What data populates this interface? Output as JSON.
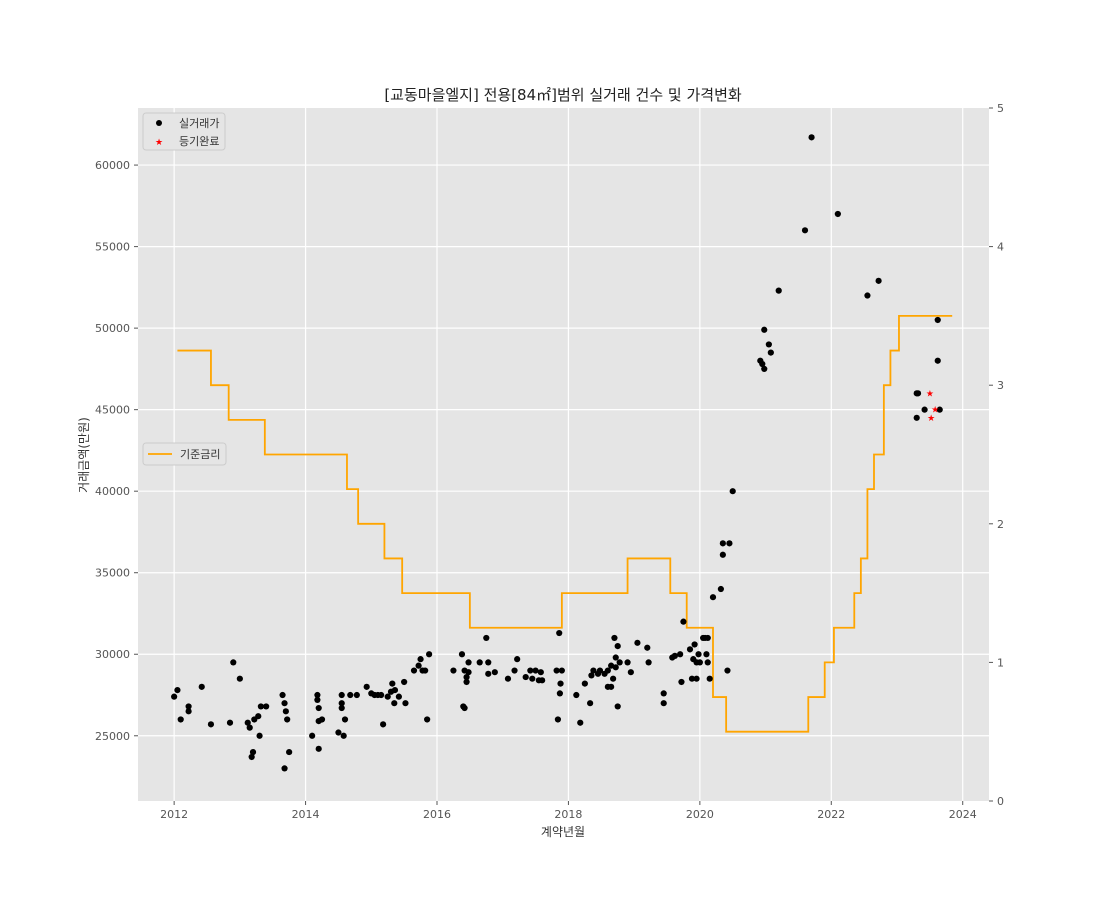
{
  "chart_data": {
    "type": "scatter",
    "title": "[교동마을엘지] 전용[84㎡]범위 실거래 건수 및 가격변화",
    "xlabel": "계약년월",
    "ylabel": "거래금액(만원)",
    "xlim": [
      2011.45,
      2024.4
    ],
    "ylim": [
      21000,
      63500
    ],
    "y2lim": [
      0,
      5
    ],
    "x_ticks": [
      "2012",
      "2014",
      "2016",
      "2018",
      "2020",
      "2022",
      "2024"
    ],
    "y_ticks": [
      25000,
      30000,
      35000,
      40000,
      45000,
      50000,
      55000,
      60000
    ],
    "y_tick_labels": [
      "25000",
      "30000",
      "35000",
      "40000",
      "45000",
      "50000",
      "55000",
      "60000"
    ],
    "y2_ticks": [
      0,
      1,
      2,
      3,
      4,
      5
    ],
    "y2_tick_labels": [
      "0",
      "1",
      "2",
      "3",
      "4",
      "5"
    ],
    "grid": true,
    "legend_upper": {
      "placement": "top-left",
      "entries": [
        "실거래가",
        "등기완료"
      ]
    },
    "legend_lower": {
      "placement": "center-left",
      "entries": [
        "기준금리"
      ]
    },
    "colors": {
      "plot_bg": "#e5e5e5",
      "grid": "#ffffff",
      "trades": "#000000",
      "registered": "#ff0000",
      "rate": "#ffa500"
    },
    "series": [
      {
        "name": "실거래가",
        "marker": "circle",
        "points": [
          [
            2012.0,
            27400
          ],
          [
            2012.05,
            27800
          ],
          [
            2012.1,
            26000
          ],
          [
            2012.22,
            26500
          ],
          [
            2012.22,
            26800
          ],
          [
            2012.42,
            28000
          ],
          [
            2012.56,
            25700
          ],
          [
            2012.85,
            25800
          ],
          [
            2012.9,
            29500
          ],
          [
            2013.0,
            28500
          ],
          [
            2013.12,
            25800
          ],
          [
            2013.15,
            25500
          ],
          [
            2013.18,
            23700
          ],
          [
            2013.2,
            24000
          ],
          [
            2013.22,
            26000
          ],
          [
            2013.28,
            26200
          ],
          [
            2013.3,
            25000
          ],
          [
            2013.32,
            26800
          ],
          [
            2013.4,
            26800
          ],
          [
            2013.65,
            27500
          ],
          [
            2013.68,
            27000
          ],
          [
            2013.7,
            26500
          ],
          [
            2013.72,
            26000
          ],
          [
            2013.75,
            24000
          ],
          [
            2013.68,
            23000
          ],
          [
            2014.1,
            25000
          ],
          [
            2014.18,
            27200
          ],
          [
            2014.18,
            27500
          ],
          [
            2014.2,
            26700
          ],
          [
            2014.2,
            24200
          ],
          [
            2014.2,
            25900
          ],
          [
            2014.25,
            26000
          ],
          [
            2014.5,
            25200
          ],
          [
            2014.55,
            26700
          ],
          [
            2014.55,
            27000
          ],
          [
            2014.55,
            27500
          ],
          [
            2014.58,
            25000
          ],
          [
            2014.6,
            26000
          ],
          [
            2014.68,
            27500
          ],
          [
            2014.78,
            27500
          ],
          [
            2014.93,
            28000
          ],
          [
            2015.0,
            27600
          ],
          [
            2015.05,
            27500
          ],
          [
            2015.1,
            27500
          ],
          [
            2015.15,
            27500
          ],
          [
            2015.18,
            25700
          ],
          [
            2015.25,
            27400
          ],
          [
            2015.3,
            27700
          ],
          [
            2015.32,
            28200
          ],
          [
            2015.35,
            27000
          ],
          [
            2015.36,
            27800
          ],
          [
            2015.42,
            27400
          ],
          [
            2015.5,
            28300
          ],
          [
            2015.52,
            27000
          ],
          [
            2015.65,
            29000
          ],
          [
            2015.72,
            29300
          ],
          [
            2015.75,
            29700
          ],
          [
            2015.78,
            29000
          ],
          [
            2015.82,
            29000
          ],
          [
            2015.85,
            26000
          ],
          [
            2015.88,
            30000
          ],
          [
            2016.25,
            29000
          ],
          [
            2016.38,
            30000
          ],
          [
            2016.4,
            26800
          ],
          [
            2016.42,
            29000
          ],
          [
            2016.42,
            26700
          ],
          [
            2016.45,
            28600
          ],
          [
            2016.45,
            28300
          ],
          [
            2016.48,
            28900
          ],
          [
            2016.48,
            29500
          ],
          [
            2016.65,
            29500
          ],
          [
            2016.75,
            31000
          ],
          [
            2016.78,
            28800
          ],
          [
            2016.78,
            29500
          ],
          [
            2016.88,
            28900
          ],
          [
            2017.08,
            28500
          ],
          [
            2017.18,
            29000
          ],
          [
            2017.22,
            29700
          ],
          [
            2017.35,
            28600
          ],
          [
            2017.42,
            29000
          ],
          [
            2017.45,
            28500
          ],
          [
            2017.5,
            29000
          ],
          [
            2017.55,
            28400
          ],
          [
            2017.58,
            28900
          ],
          [
            2017.6,
            28400
          ],
          [
            2017.82,
            29000
          ],
          [
            2017.84,
            26000
          ],
          [
            2017.86,
            31300
          ],
          [
            2017.87,
            27600
          ],
          [
            2017.88,
            28200
          ],
          [
            2017.9,
            29000
          ],
          [
            2018.12,
            27500
          ],
          [
            2018.18,
            25800
          ],
          [
            2018.25,
            28200
          ],
          [
            2018.33,
            27000
          ],
          [
            2018.35,
            28700
          ],
          [
            2018.38,
            29000
          ],
          [
            2018.45,
            28800
          ],
          [
            2018.48,
            29000
          ],
          [
            2018.55,
            28800
          ],
          [
            2018.6,
            29000
          ],
          [
            2018.6,
            28000
          ],
          [
            2018.65,
            28000
          ],
          [
            2018.65,
            29300
          ],
          [
            2018.68,
            28500
          ],
          [
            2018.7,
            31000
          ],
          [
            2018.72,
            29800
          ],
          [
            2018.72,
            29200
          ],
          [
            2018.75,
            30500
          ],
          [
            2018.75,
            26800
          ],
          [
            2018.78,
            29500
          ],
          [
            2018.9,
            29500
          ],
          [
            2018.95,
            28900
          ],
          [
            2019.05,
            30700
          ],
          [
            2019.2,
            30400
          ],
          [
            2019.22,
            29500
          ],
          [
            2019.45,
            27600
          ],
          [
            2019.45,
            27000
          ],
          [
            2019.58,
            29800
          ],
          [
            2019.62,
            29900
          ],
          [
            2019.7,
            30000
          ],
          [
            2019.72,
            28300
          ],
          [
            2019.75,
            32000
          ],
          [
            2019.85,
            30300
          ],
          [
            2019.88,
            28500
          ],
          [
            2019.9,
            29700
          ],
          [
            2019.92,
            30600
          ],
          [
            2019.95,
            29500
          ],
          [
            2019.95,
            28500
          ],
          [
            2019.98,
            30000
          ],
          [
            2020.0,
            29500
          ],
          [
            2020.05,
            31000
          ],
          [
            2020.08,
            31000
          ],
          [
            2020.1,
            30000
          ],
          [
            2020.12,
            29500
          ],
          [
            2020.12,
            31000
          ],
          [
            2020.15,
            28500
          ],
          [
            2020.2,
            33500
          ],
          [
            2020.32,
            34000
          ],
          [
            2020.35,
            36100
          ],
          [
            2020.35,
            36800
          ],
          [
            2020.42,
            29000
          ],
          [
            2020.45,
            36800
          ],
          [
            2020.5,
            40000
          ],
          [
            2020.92,
            48000
          ],
          [
            2020.95,
            47800
          ],
          [
            2020.98,
            47500
          ],
          [
            2020.98,
            49900
          ],
          [
            2021.05,
            49000
          ],
          [
            2021.08,
            48500
          ],
          [
            2021.2,
            52300
          ],
          [
            2021.6,
            56000
          ],
          [
            2021.7,
            61700
          ],
          [
            2022.1,
            57000
          ],
          [
            2022.55,
            52000
          ],
          [
            2022.72,
            52900
          ],
          [
            2023.3,
            44500
          ],
          [
            2023.3,
            46000
          ],
          [
            2023.32,
            46000
          ],
          [
            2023.42,
            45000
          ],
          [
            2023.62,
            50500
          ],
          [
            2023.62,
            48000
          ],
          [
            2023.65,
            45000
          ]
        ]
      },
      {
        "name": "등기완료",
        "marker": "star",
        "points": [
          [
            2023.5,
            46000
          ],
          [
            2023.52,
            44500
          ],
          [
            2023.58,
            45000
          ]
        ]
      },
      {
        "name": "기준금리",
        "type": "step",
        "axis": "right",
        "points": [
          [
            2012.05,
            3.25
          ],
          [
            2012.56,
            3.0
          ],
          [
            2012.83,
            2.75
          ],
          [
            2013.38,
            2.5
          ],
          [
            2014.63,
            2.25
          ],
          [
            2014.8,
            2.0
          ],
          [
            2015.2,
            1.75
          ],
          [
            2015.47,
            1.5
          ],
          [
            2016.5,
            1.25
          ],
          [
            2017.9,
            1.5
          ],
          [
            2018.9,
            1.75
          ],
          [
            2019.55,
            1.5
          ],
          [
            2019.8,
            1.25
          ],
          [
            2020.2,
            0.75
          ],
          [
            2020.4,
            0.5
          ],
          [
            2021.65,
            0.75
          ],
          [
            2021.9,
            1.0
          ],
          [
            2022.04,
            1.25
          ],
          [
            2022.35,
            1.5
          ],
          [
            2022.45,
            1.75
          ],
          [
            2022.55,
            2.25
          ],
          [
            2022.65,
            2.5
          ],
          [
            2022.8,
            3.0
          ],
          [
            2022.9,
            3.25
          ],
          [
            2023.03,
            3.5
          ],
          [
            2023.84,
            3.5
          ]
        ]
      }
    ]
  }
}
